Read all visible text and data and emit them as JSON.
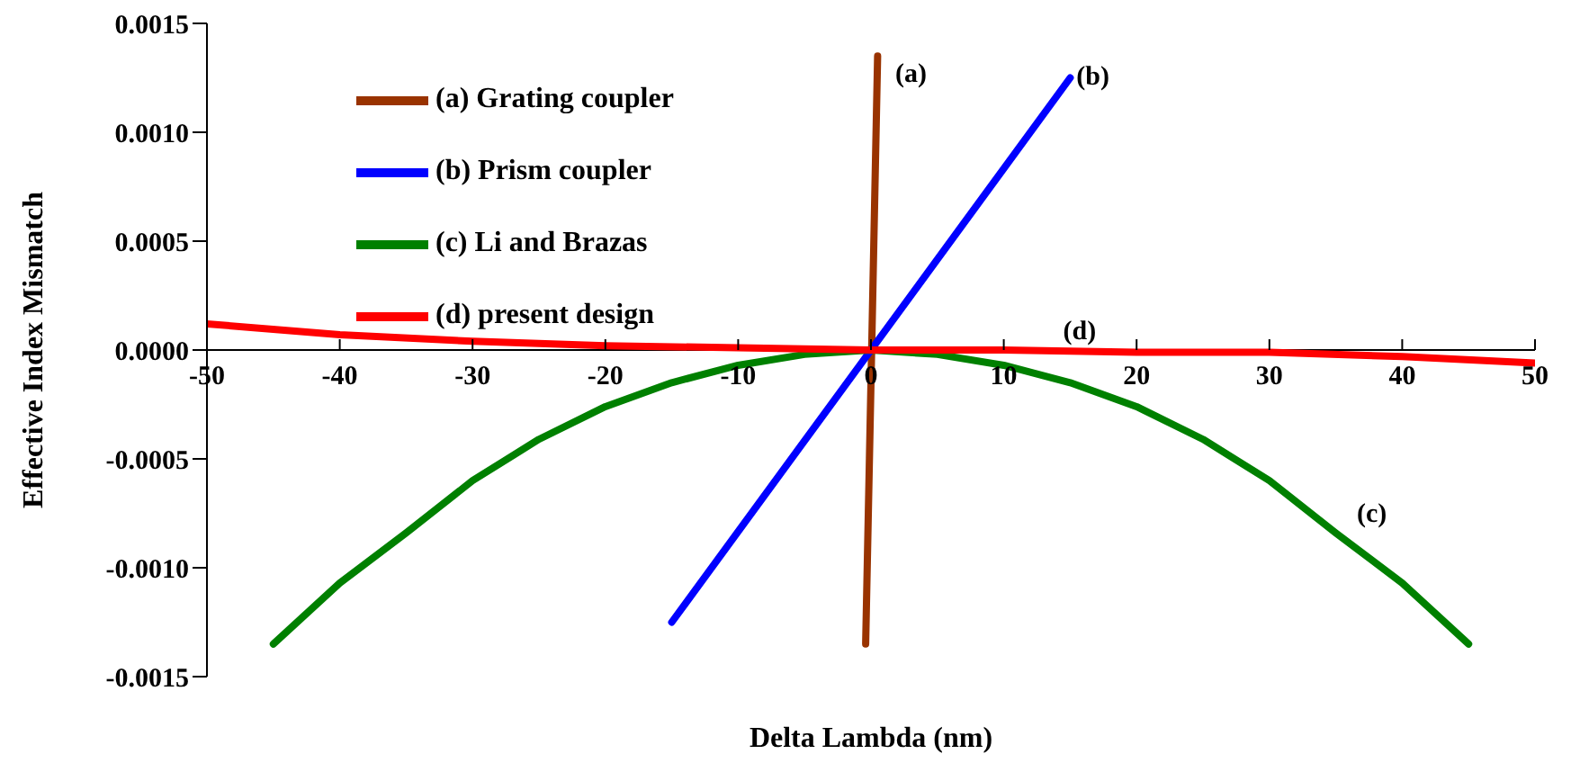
{
  "chart_data": {
    "type": "line",
    "xlabel": "Delta Lambda (nm)",
    "ylabel": "Effective Index Mismatch",
    "xlim": [
      -50,
      50
    ],
    "xticks": [
      -50,
      -40,
      -30,
      -20,
      -10,
      0,
      10,
      20,
      30,
      40,
      50
    ],
    "ylim": [
      -0.0015,
      0.0015
    ],
    "yticks": [
      {
        "value": -0.0015,
        "label": "-0.0015"
      },
      {
        "value": -0.001,
        "label": "-0.0010"
      },
      {
        "value": -0.0005,
        "label": "-0.0005"
      },
      {
        "value": 0,
        "label": "0.0000"
      },
      {
        "value": 0.0005,
        "label": "0.0005"
      },
      {
        "value": 0.001,
        "label": "0.0010"
      },
      {
        "value": 0.0015,
        "label": "0.0015"
      }
    ],
    "grid": false,
    "legend": "top left",
    "marker": "none",
    "line_style": "solid",
    "series": [
      {
        "name": "(a) Grating coupler",
        "color": "#993300",
        "x": [
          -0.4,
          0.5
        ],
        "values": [
          -0.00135,
          0.00135
        ]
      },
      {
        "name": "(b) Prism coupler",
        "color": "#0000ff",
        "x": [
          -15,
          15
        ],
        "values": [
          -0.00125,
          0.00125
        ]
      },
      {
        "name": "(c) Li and Brazas",
        "color": "#008000",
        "x": [
          -45,
          -40,
          -35,
          -30,
          -25,
          -20,
          -15,
          -10,
          -5,
          0,
          5,
          10,
          15,
          20,
          25,
          30,
          35,
          40,
          45
        ],
        "values": [
          -0.00135,
          -0.00107,
          -0.00084,
          -0.0006,
          -0.00041,
          -0.00026,
          -0.00015,
          -7e-05,
          -2e-05,
          0,
          -2e-05,
          -7e-05,
          -0.00015,
          -0.00026,
          -0.00041,
          -0.0006,
          -0.00084,
          -0.00107,
          -0.00135
        ]
      },
      {
        "name": "(d) present design",
        "color": "#ff0000",
        "x": [
          -50,
          -40,
          -30,
          -20,
          -10,
          0,
          10,
          20,
          30,
          40,
          50
        ],
        "values": [
          0.00012,
          7e-05,
          4e-05,
          2e-05,
          1e-05,
          0,
          0,
          -1e-05,
          -1e-05,
          -3e-05,
          -6e-05
        ]
      }
    ],
    "annotations": [
      {
        "text": "(a)",
        "x": 0.3,
        "y": 0.00118
      },
      {
        "text": "(b)",
        "x": 14,
        "y": 0.00117
      },
      {
        "text": "(c)",
        "x": 35,
        "y": -0.00084
      },
      {
        "text": "(d)",
        "x": 13,
        "y": 0
      }
    ]
  }
}
